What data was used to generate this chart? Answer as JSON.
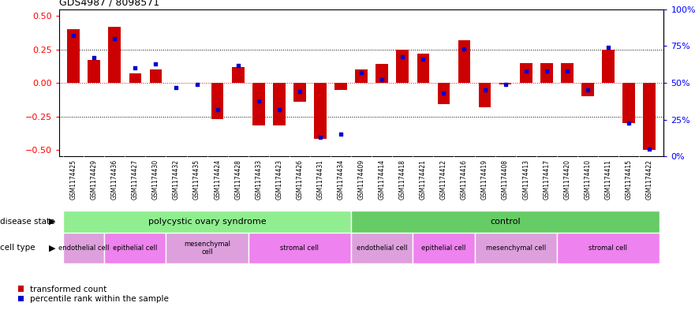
{
  "title": "GDS4987 / 8098571",
  "samples": [
    "GSM1174425",
    "GSM1174429",
    "GSM1174436",
    "GSM1174427",
    "GSM1174430",
    "GSM1174432",
    "GSM1174435",
    "GSM1174424",
    "GSM1174428",
    "GSM1174433",
    "GSM1174423",
    "GSM1174426",
    "GSM1174431",
    "GSM1174434",
    "GSM1174409",
    "GSM1174414",
    "GSM1174418",
    "GSM1174421",
    "GSM1174412",
    "GSM1174416",
    "GSM1174419",
    "GSM1174408",
    "GSM1174413",
    "GSM1174417",
    "GSM1174420",
    "GSM1174410",
    "GSM1174411",
    "GSM1174415",
    "GSM1174422"
  ],
  "bar_values": [
    0.4,
    0.17,
    0.42,
    0.07,
    0.1,
    0.0,
    0.0,
    -0.27,
    0.12,
    -0.32,
    -0.32,
    -0.14,
    -0.42,
    -0.05,
    0.1,
    0.14,
    0.25,
    0.22,
    -0.16,
    0.32,
    -0.18,
    -0.01,
    0.15,
    0.15,
    0.15,
    -0.1,
    0.25,
    -0.3,
    -0.5
  ],
  "scatter_values": [
    82,
    67,
    80,
    60,
    63,
    47,
    49,
    32,
    62,
    38,
    32,
    44,
    13,
    15,
    57,
    52,
    68,
    66,
    43,
    73,
    45,
    49,
    58,
    58,
    58,
    45,
    74,
    23,
    5
  ],
  "disease_state_groups": [
    {
      "label": "polycystic ovary syndrome",
      "start": 0,
      "end": 13,
      "color": "#90EE90"
    },
    {
      "label": "control",
      "start": 14,
      "end": 28,
      "color": "#66CC66"
    }
  ],
  "cell_type_groups": [
    {
      "label": "endothelial cell",
      "start": 0,
      "end": 1,
      "color": "#DDA0DD"
    },
    {
      "label": "epithelial cell",
      "start": 2,
      "end": 4,
      "color": "#EE82EE"
    },
    {
      "label": "mesenchymal\ncell",
      "start": 5,
      "end": 8,
      "color": "#DDA0DD"
    },
    {
      "label": "stromal cell",
      "start": 9,
      "end": 13,
      "color": "#EE82EE"
    },
    {
      "label": "endothelial cell",
      "start": 14,
      "end": 16,
      "color": "#DDA0DD"
    },
    {
      "label": "epithelial cell",
      "start": 17,
      "end": 19,
      "color": "#EE82EE"
    },
    {
      "label": "mesenchymal cell",
      "start": 20,
      "end": 23,
      "color": "#DDA0DD"
    },
    {
      "label": "stromal cell",
      "start": 24,
      "end": 28,
      "color": "#EE82EE"
    }
  ],
  "bar_color": "#CC0000",
  "scatter_color": "#0000CC",
  "ylim": [
    -0.55,
    0.55
  ],
  "yticks_left": [
    -0.5,
    -0.25,
    0.0,
    0.25,
    0.5
  ],
  "yticks_right": [
    0,
    25,
    50,
    75,
    100
  ],
  "hlines": [
    -0.25,
    0.0,
    0.25
  ],
  "legend_items": [
    {
      "color": "#CC0000",
      "label": "transformed count"
    },
    {
      "color": "#0000CC",
      "label": "percentile rank within the sample"
    }
  ],
  "fig_width": 8.81,
  "fig_height": 3.93,
  "dpi": 100
}
